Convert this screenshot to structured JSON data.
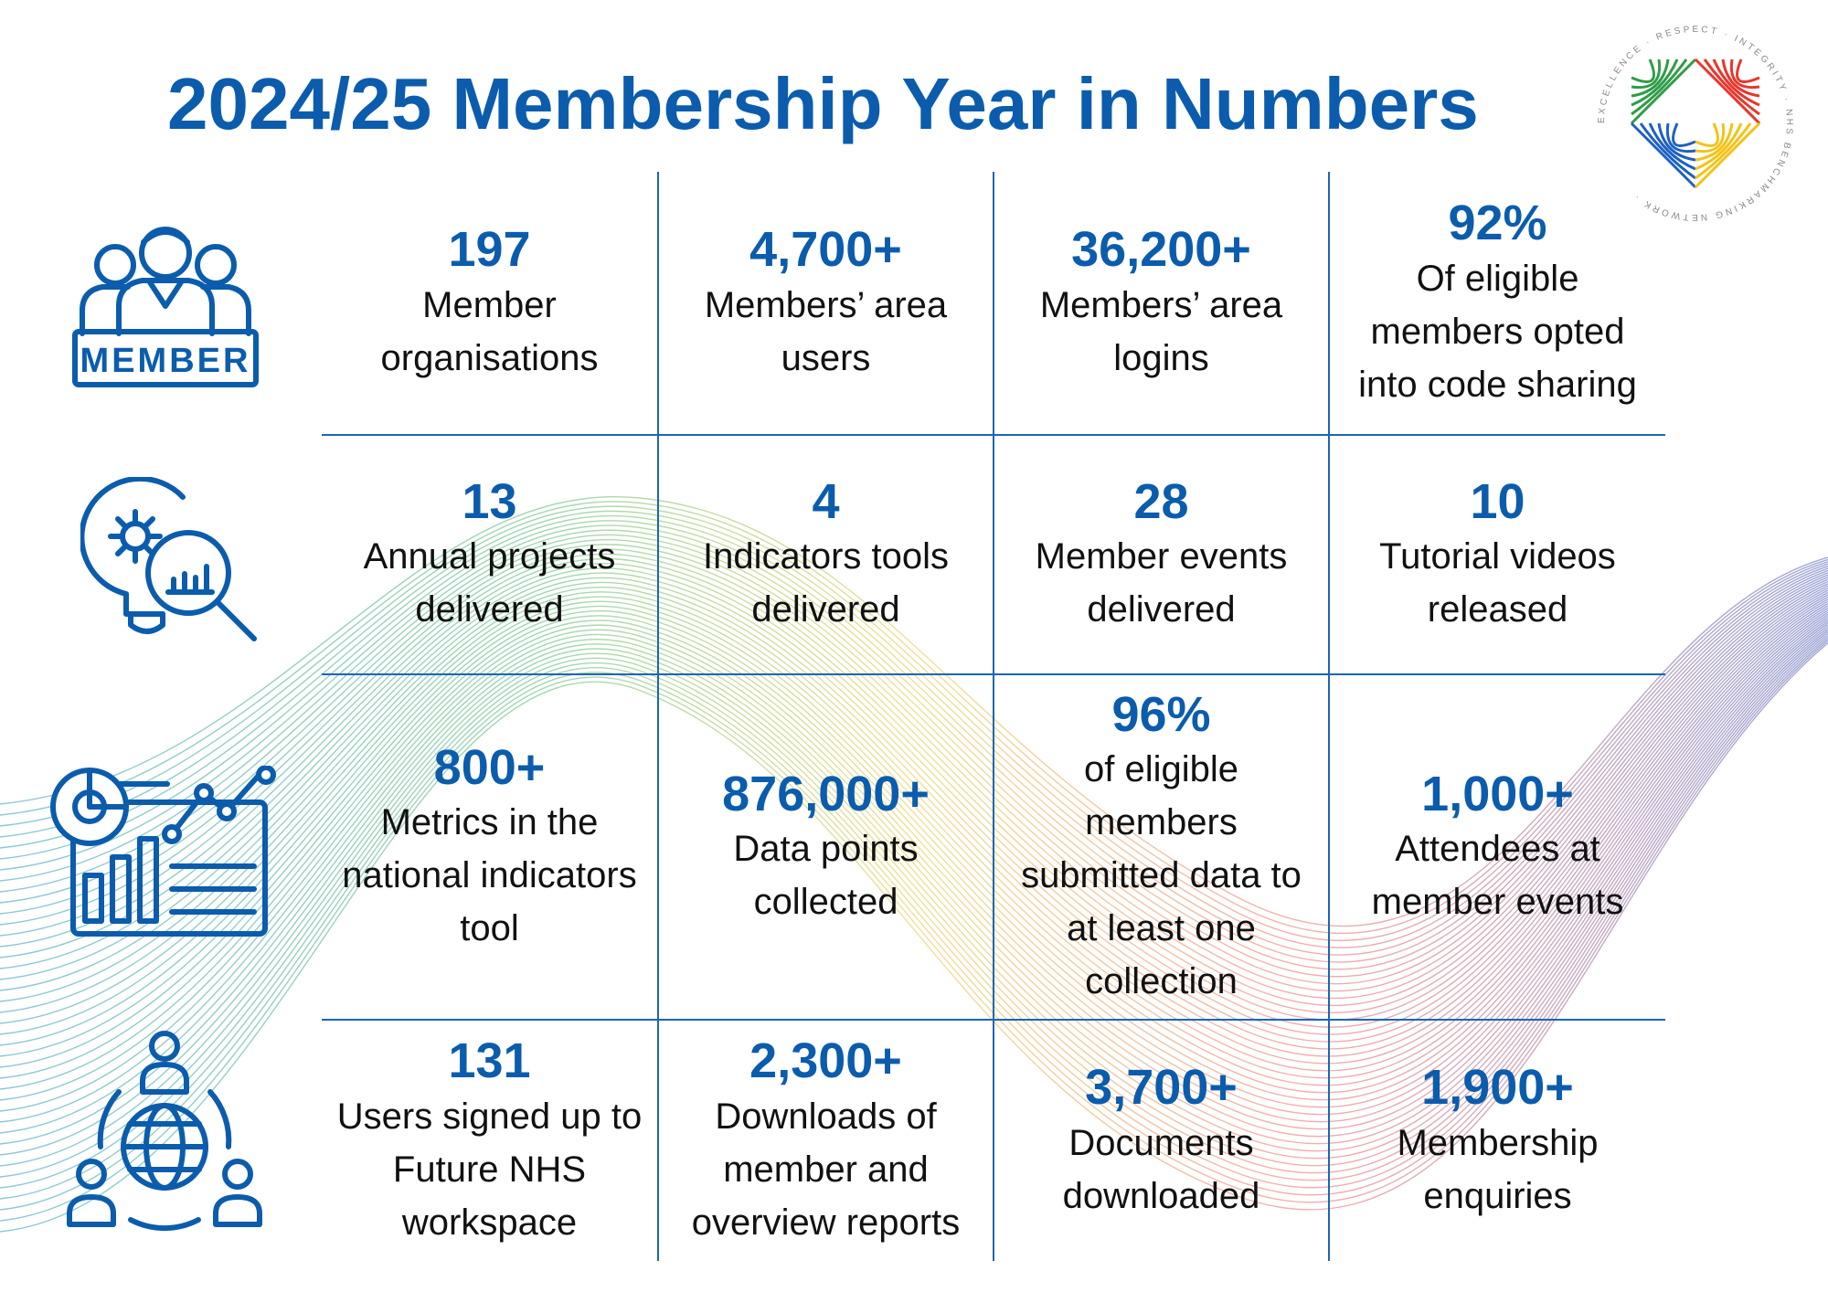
{
  "title": "2024/25 Membership Year in Numbers",
  "logo": {
    "ring_text": "EXCELLENCE · RESPECT · INTEGRITY · NHS BENCHMARKING NETWORK ·",
    "colors": [
      "#2e9d46",
      "#e8362b",
      "#1c60c4",
      "#f2c318"
    ]
  },
  "icons": {
    "member_badge": "MEMBER",
    "color": "#0b5cad"
  },
  "stats": [
    {
      "value": "197",
      "label": "Member\norganisations"
    },
    {
      "value": "4,700+",
      "label": "Members’ area\nusers"
    },
    {
      "value": "36,200+",
      "label": "Members’ area\nlogins"
    },
    {
      "value": "92%",
      "label": "Of eligible\nmembers opted\ninto code sharing"
    },
    {
      "value": "13",
      "label": "Annual projects\ndelivered"
    },
    {
      "value": "4",
      "label": "Indicators tools\ndelivered"
    },
    {
      "value": "28",
      "label": "Member events\ndelivered"
    },
    {
      "value": "10",
      "label": "Tutorial videos\nreleased"
    },
    {
      "value": "800+",
      "label": "Metrics in the\nnational indicators\ntool"
    },
    {
      "value": "876,000+",
      "label": "Data points\ncollected"
    },
    {
      "value": "96%",
      "label": "of eligible\nmembers\nsubmitted data to\nat least one\ncollection"
    },
    {
      "value": "1,000+",
      "label": "Attendees at\nmember events"
    },
    {
      "value": "131",
      "label": "Users signed up to\nFuture NHS\nworkspace"
    },
    {
      "value": "2,300+",
      "label": "Downloads of\nmember and\noverview reports"
    },
    {
      "value": "3,700+",
      "label": "Documents\ndownloaded"
    },
    {
      "value": "1,900+",
      "label": "Membership\nenquiries"
    }
  ]
}
